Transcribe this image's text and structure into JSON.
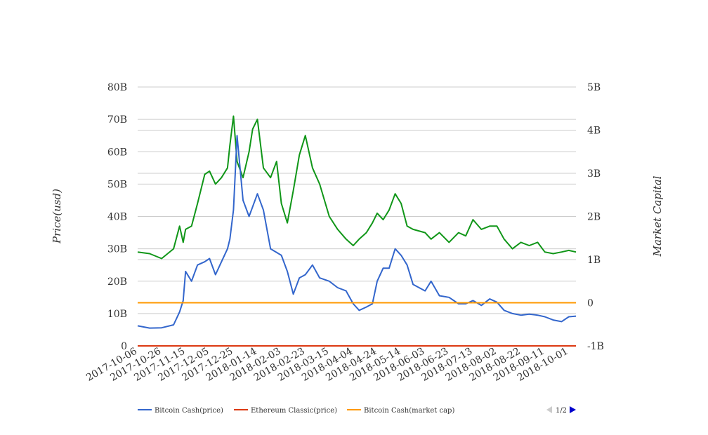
{
  "chart_data": {
    "type": "line",
    "title": "",
    "ylabel_left": "Price(usd)",
    "ylabel_right": "Market Capital",
    "left_axis": {
      "min": 0,
      "max": 80000000000,
      "ticks": [
        0,
        10000000000,
        20000000000,
        30000000000,
        40000000000,
        50000000000,
        60000000000,
        70000000000,
        80000000000
      ],
      "tick_labels": [
        "0",
        "10B",
        "20B",
        "30B",
        "40B",
        "50B",
        "60B",
        "70B",
        "80B"
      ]
    },
    "right_axis": {
      "min": -1000000000,
      "max": 5000000000,
      "ticks": [
        -1000000000,
        0,
        1000000000,
        2000000000,
        3000000000,
        4000000000,
        5000000000
      ],
      "tick_labels": [
        "-1B",
        "0",
        "1B",
        "2B",
        "3B",
        "4B",
        "5B"
      ]
    },
    "x_tick_labels": [
      "2017-10-06",
      "2017-10-26",
      "2017-11-15",
      "2017-12-05",
      "2017-12-25",
      "2018-01-14",
      "2018-02-03",
      "2018-02-23",
      "2018-03-15",
      "2018-04-04",
      "2018-04-24",
      "2018-05-14",
      "2018-06-03",
      "2018-06-23",
      "2018-07-13",
      "2018-08-02",
      "2018-08-22",
      "2018-09-11",
      "2018-10-01"
    ],
    "x_start": "2017-10-06",
    "x_end": "2018-10-07",
    "grid": true,
    "legend_position": "bottom",
    "series": [
      {
        "name": "Bitcoin Cash(price)",
        "axis": "left",
        "color": "#3366cc",
        "x": [
          "2017-10-06",
          "2017-10-16",
          "2017-10-26",
          "2017-11-05",
          "2017-11-10",
          "2017-11-13",
          "2017-11-15",
          "2017-11-20",
          "2017-11-25",
          "2017-12-01",
          "2017-12-05",
          "2017-12-10",
          "2017-12-15",
          "2017-12-20",
          "2017-12-22",
          "2017-12-25",
          "2017-12-28",
          "2018-01-02",
          "2018-01-07",
          "2018-01-10",
          "2018-01-14",
          "2018-01-19",
          "2018-01-25",
          "2018-02-03",
          "2018-02-08",
          "2018-02-13",
          "2018-02-18",
          "2018-02-23",
          "2018-03-01",
          "2018-03-07",
          "2018-03-15",
          "2018-03-22",
          "2018-03-29",
          "2018-04-04",
          "2018-04-09",
          "2018-04-15",
          "2018-04-20",
          "2018-04-24",
          "2018-04-29",
          "2018-05-04",
          "2018-05-09",
          "2018-05-14",
          "2018-05-19",
          "2018-05-24",
          "2018-06-03",
          "2018-06-08",
          "2018-06-15",
          "2018-06-23",
          "2018-07-01",
          "2018-07-07",
          "2018-07-13",
          "2018-07-20",
          "2018-07-27",
          "2018-08-02",
          "2018-08-08",
          "2018-08-15",
          "2018-08-22",
          "2018-08-29",
          "2018-09-05",
          "2018-09-11",
          "2018-09-18",
          "2018-09-25",
          "2018-10-01",
          "2018-10-07"
        ],
        "values": [
          6200000000,
          5500000000,
          5600000000,
          6500000000,
          10500000000,
          14000000000,
          23000000000,
          20000000000,
          25000000000,
          26000000000,
          27000000000,
          22000000000,
          26000000000,
          30000000000,
          33000000000,
          42000000000,
          65000000000,
          45000000000,
          40000000000,
          43000000000,
          47000000000,
          42000000000,
          30000000000,
          28000000000,
          23000000000,
          16000000000,
          21000000000,
          22000000000,
          25000000000,
          21000000000,
          20000000000,
          18000000000,
          17000000000,
          13000000000,
          11000000000,
          12000000000,
          13000000000,
          20000000000,
          24000000000,
          24000000000,
          30000000000,
          28000000000,
          25000000000,
          19000000000,
          17000000000,
          20000000000,
          15500000000,
          15000000000,
          13000000000,
          13000000000,
          14000000000,
          12500000000,
          14500000000,
          13500000000,
          11000000000,
          10000000000,
          9500000000,
          9800000000,
          9500000000,
          9000000000,
          8000000000,
          7500000000,
          9000000000,
          9200000000
        ]
      },
      {
        "name": "Ethereum Classic(price)",
        "axis": "left",
        "color": "#dc3912",
        "x": [
          "2017-10-06",
          "2018-10-07"
        ],
        "values": [
          0,
          0
        ]
      },
      {
        "name": "Bitcoin Cash(market cap)",
        "axis": "right",
        "color": "#ff9900",
        "x": [
          "2017-10-06",
          "2018-10-07"
        ],
        "values": [
          0,
          0
        ]
      },
      {
        "name": "",
        "axis": "left",
        "color": "#109618",
        "x": [
          "2017-10-06",
          "2017-10-16",
          "2017-10-26",
          "2017-11-05",
          "2017-11-10",
          "2017-11-13",
          "2017-11-15",
          "2017-11-20",
          "2017-11-25",
          "2017-12-01",
          "2017-12-05",
          "2017-12-10",
          "2017-12-15",
          "2017-12-20",
          "2017-12-22",
          "2017-12-25",
          "2017-12-28",
          "2018-01-02",
          "2018-01-07",
          "2018-01-10",
          "2018-01-14",
          "2018-01-19",
          "2018-01-25",
          "2018-01-30",
          "2018-02-03",
          "2018-02-08",
          "2018-02-13",
          "2018-02-18",
          "2018-02-23",
          "2018-03-01",
          "2018-03-07",
          "2018-03-15",
          "2018-03-22",
          "2018-03-29",
          "2018-04-04",
          "2018-04-09",
          "2018-04-15",
          "2018-04-20",
          "2018-04-24",
          "2018-04-29",
          "2018-05-04",
          "2018-05-09",
          "2018-05-14",
          "2018-05-19",
          "2018-05-24",
          "2018-06-03",
          "2018-06-08",
          "2018-06-15",
          "2018-06-23",
          "2018-07-01",
          "2018-07-07",
          "2018-07-13",
          "2018-07-20",
          "2018-07-27",
          "2018-08-02",
          "2018-08-08",
          "2018-08-15",
          "2018-08-22",
          "2018-08-29",
          "2018-09-05",
          "2018-09-11",
          "2018-09-18",
          "2018-09-25",
          "2018-10-01",
          "2018-10-07"
        ],
        "values": [
          29000000000,
          28500000000,
          27000000000,
          30000000000,
          37000000000,
          32000000000,
          36000000000,
          37000000000,
          44000000000,
          53000000000,
          54000000000,
          50000000000,
          52000000000,
          55000000000,
          62000000000,
          71000000000,
          57000000000,
          52000000000,
          60000000000,
          67000000000,
          70000000000,
          55000000000,
          52000000000,
          57000000000,
          44000000000,
          38000000000,
          48000000000,
          59000000000,
          65000000000,
          55000000000,
          50000000000,
          40000000000,
          36000000000,
          33000000000,
          31000000000,
          33000000000,
          35000000000,
          38000000000,
          41000000000,
          39000000000,
          42000000000,
          47000000000,
          44000000000,
          37000000000,
          36000000000,
          35000000000,
          33000000000,
          35000000000,
          32000000000,
          35000000000,
          34000000000,
          39000000000,
          36000000000,
          37000000000,
          37000000000,
          33000000000,
          30000000000,
          32000000000,
          31000000000,
          32000000000,
          29000000000,
          28500000000,
          29000000000,
          29500000000,
          29000000000
        ]
      }
    ],
    "pager": {
      "label": "1/2"
    }
  }
}
